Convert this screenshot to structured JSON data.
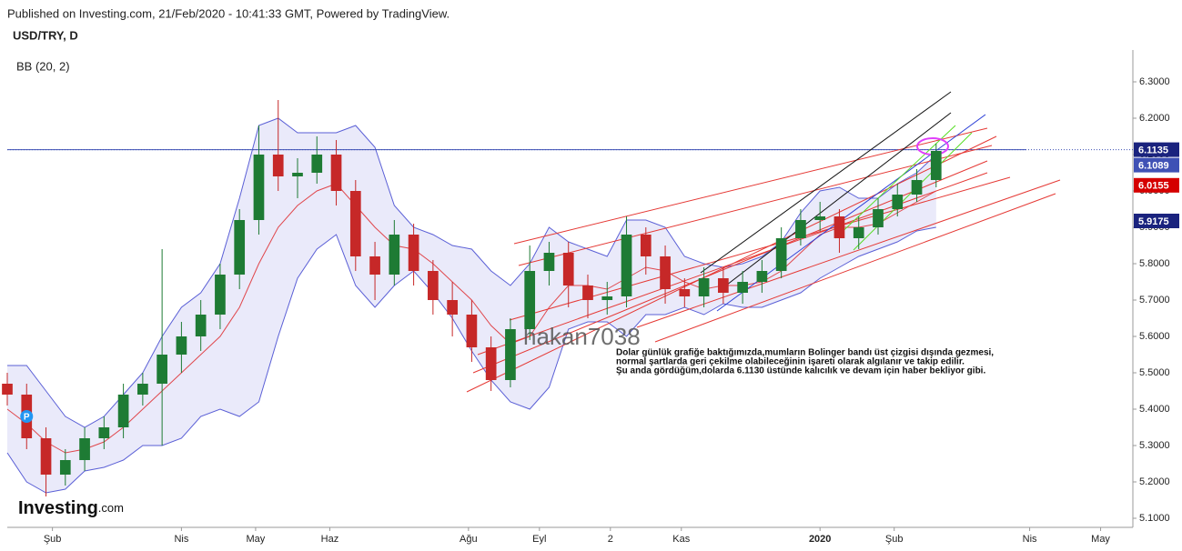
{
  "chart_data": {
    "type": "candlestick",
    "published": "Published on Investing.com, 21/Feb/2020 - 10:41:33 GMT, Powered by TradingView.",
    "title": "USD/TRY, D",
    "indicator": "BB (20, 2)",
    "watermark": "hakan7038",
    "marker": "P",
    "logo": {
      "brand": "Investing",
      "suffix": ".com"
    },
    "annotation": [
      "Dolar günlük grafiğe baktığımızda,mumların Bolinger bandı üst çizgisi dışında gezmesi,",
      "normal şartlarda geri çekilme olabileceğinin işareti olarak algılanır ve takip edilir.",
      "Şu anda gördüğüm,dolarda 6.1130  üstünde kalıcılık ve devam için haber bekliyor gibi."
    ],
    "up_color": "#1e7b34",
    "down_color": "#c62828",
    "band_color": "#5a5fd6",
    "middle_color": "#e0474c",
    "x": [
      0,
      6,
      12,
      18,
      24,
      30,
      36,
      42,
      48,
      54,
      60,
      66,
      72,
      78,
      84,
      90,
      96,
      102,
      108,
      114,
      120,
      126,
      132,
      138,
      144,
      150,
      156,
      162,
      168,
      174,
      180,
      186,
      192,
      198,
      204,
      210,
      216,
      222,
      228,
      234,
      240,
      246,
      252,
      258,
      264,
      270,
      276,
      282,
      288
    ],
    "open": [
      5.47,
      5.44,
      5.32,
      5.22,
      5.26,
      5.32,
      5.35,
      5.44,
      5.47,
      5.55,
      5.6,
      5.66,
      5.77,
      5.92,
      6.1,
      6.04,
      6.05,
      6.1,
      6.0,
      5.82,
      5.77,
      5.88,
      5.78,
      5.7,
      5.66,
      5.57,
      5.48,
      5.62,
      5.78,
      5.83,
      5.74,
      5.7,
      5.71,
      5.88,
      5.82,
      5.73,
      5.71,
      5.76,
      5.72,
      5.75,
      5.78,
      5.87,
      5.92,
      5.93,
      5.87,
      5.9,
      5.95,
      5.99,
      6.03
    ],
    "high": [
      5.5,
      5.47,
      5.35,
      5.29,
      5.35,
      5.38,
      5.47,
      5.5,
      5.84,
      5.64,
      5.7,
      5.8,
      5.95,
      6.18,
      6.25,
      6.09,
      6.15,
      6.14,
      6.03,
      5.86,
      5.92,
      5.91,
      5.81,
      5.75,
      5.7,
      5.6,
      5.65,
      5.85,
      5.86,
      5.86,
      5.77,
      5.75,
      5.93,
      5.9,
      5.85,
      5.76,
      5.79,
      5.79,
      5.78,
      5.81,
      5.9,
      5.95,
      5.97,
      5.95,
      5.93,
      5.98,
      6.02,
      6.06,
      6.13
    ],
    "low": [
      5.41,
      5.29,
      5.16,
      5.19,
      5.23,
      5.29,
      5.32,
      5.41,
      5.3,
      5.5,
      5.56,
      5.62,
      5.73,
      5.88,
      6.0,
      5.98,
      6.02,
      5.96,
      5.78,
      5.7,
      5.74,
      5.74,
      5.66,
      5.6,
      5.53,
      5.45,
      5.46,
      5.59,
      5.74,
      5.68,
      5.65,
      5.66,
      5.68,
      5.77,
      5.69,
      5.68,
      5.68,
      5.69,
      5.69,
      5.72,
      5.76,
      5.85,
      5.89,
      5.83,
      5.84,
      5.88,
      5.93,
      5.97,
      6.01
    ],
    "close": [
      5.44,
      5.32,
      5.22,
      5.26,
      5.32,
      5.35,
      5.44,
      5.47,
      5.55,
      5.6,
      5.66,
      5.77,
      5.92,
      6.1,
      6.04,
      6.05,
      6.1,
      6.0,
      5.82,
      5.77,
      5.88,
      5.78,
      5.7,
      5.66,
      5.57,
      5.48,
      5.62,
      5.78,
      5.83,
      5.74,
      5.7,
      5.71,
      5.88,
      5.82,
      5.73,
      5.71,
      5.76,
      5.72,
      5.75,
      5.78,
      5.87,
      5.92,
      5.93,
      5.87,
      5.9,
      5.95,
      5.99,
      6.03,
      6.11
    ],
    "bb_upper": [
      5.52,
      5.52,
      5.45,
      5.38,
      5.35,
      5.38,
      5.44,
      5.5,
      5.6,
      5.68,
      5.72,
      5.8,
      5.98,
      6.18,
      6.2,
      6.16,
      6.16,
      6.16,
      6.18,
      6.12,
      5.96,
      5.9,
      5.88,
      5.85,
      5.84,
      5.78,
      5.74,
      5.8,
      5.9,
      5.86,
      5.84,
      5.82,
      5.92,
      5.92,
      5.9,
      5.82,
      5.8,
      5.79,
      5.8,
      5.82,
      5.86,
      5.94,
      6.0,
      6.01,
      5.98,
      5.98,
      6.02,
      6.05,
      6.1
    ],
    "bb_middle": [
      5.4,
      5.36,
      5.31,
      5.28,
      5.29,
      5.31,
      5.35,
      5.4,
      5.45,
      5.5,
      5.55,
      5.6,
      5.68,
      5.8,
      5.9,
      5.96,
      6.0,
      6.02,
      5.96,
      5.9,
      5.85,
      5.84,
      5.8,
      5.75,
      5.7,
      5.63,
      5.58,
      5.6,
      5.68,
      5.74,
      5.74,
      5.73,
      5.76,
      5.79,
      5.78,
      5.75,
      5.73,
      5.74,
      5.74,
      5.75,
      5.78,
      5.83,
      5.88,
      5.9,
      5.9,
      5.91,
      5.94,
      5.97,
      6.0
    ],
    "bb_lower": [
      5.28,
      5.2,
      5.17,
      5.18,
      5.23,
      5.24,
      5.26,
      5.3,
      5.3,
      5.32,
      5.38,
      5.4,
      5.38,
      5.42,
      5.6,
      5.76,
      5.84,
      5.88,
      5.74,
      5.68,
      5.74,
      5.78,
      5.72,
      5.65,
      5.56,
      5.48,
      5.42,
      5.4,
      5.46,
      5.62,
      5.64,
      5.64,
      5.6,
      5.66,
      5.66,
      5.68,
      5.66,
      5.69,
      5.68,
      5.68,
      5.7,
      5.72,
      5.76,
      5.79,
      5.82,
      5.84,
      5.86,
      5.89,
      5.9
    ],
    "marker_x": 6,
    "marker_y": 5.38,
    "level": 6.1135,
    "price_labels": [
      {
        "value": 6.1135,
        "color": "#1a237e"
      },
      {
        "value": 6.1089,
        "color": "#3f51b5"
      },
      {
        "value": 6.0155,
        "color": "#d50000"
      },
      {
        "value": 5.9175,
        "color": "#1a237e"
      }
    ],
    "xlim": [
      0,
      349
    ],
    "xticks": [
      {
        "value": 14,
        "label": "Şub"
      },
      {
        "value": 54,
        "label": "Nis"
      },
      {
        "value": 77,
        "label": "May"
      },
      {
        "value": 100,
        "label": "Haz"
      },
      {
        "value": 143,
        "label": "Ağu"
      },
      {
        "value": 165,
        "label": "Eyl"
      },
      {
        "value": 187,
        "label": "2"
      },
      {
        "value": 209,
        "label": "Kas"
      },
      {
        "value": 252,
        "label": "2020"
      },
      {
        "value": 275,
        "label": "Şub"
      },
      {
        "value": 317,
        "label": "Nis"
      },
      {
        "value": 339,
        "label": "May"
      }
    ],
    "ylim": [
      5.075,
      6.3875
    ],
    "yticks": [
      {
        "value": 5.1,
        "label": "5.1000"
      },
      {
        "value": 5.2,
        "label": "5.2000"
      },
      {
        "value": 5.3,
        "label": "5.3000"
      },
      {
        "value": 5.4,
        "label": "5.4000"
      },
      {
        "value": 5.5,
        "label": "5.5000"
      },
      {
        "value": 5.6,
        "label": "5.6000"
      },
      {
        "value": 5.7,
        "label": "5.7000"
      },
      {
        "value": 5.8,
        "label": "5.8000"
      },
      {
        "value": 5.9,
        "label": "5.9000"
      },
      {
        "value": 6.0,
        "label": "6.0000"
      },
      {
        "value": 6.1,
        "label": "6.1000"
      },
      {
        "value": 6.2,
        "label": "6.2000"
      },
      {
        "value": 6.3,
        "label": "6.3000"
      }
    ]
  }
}
